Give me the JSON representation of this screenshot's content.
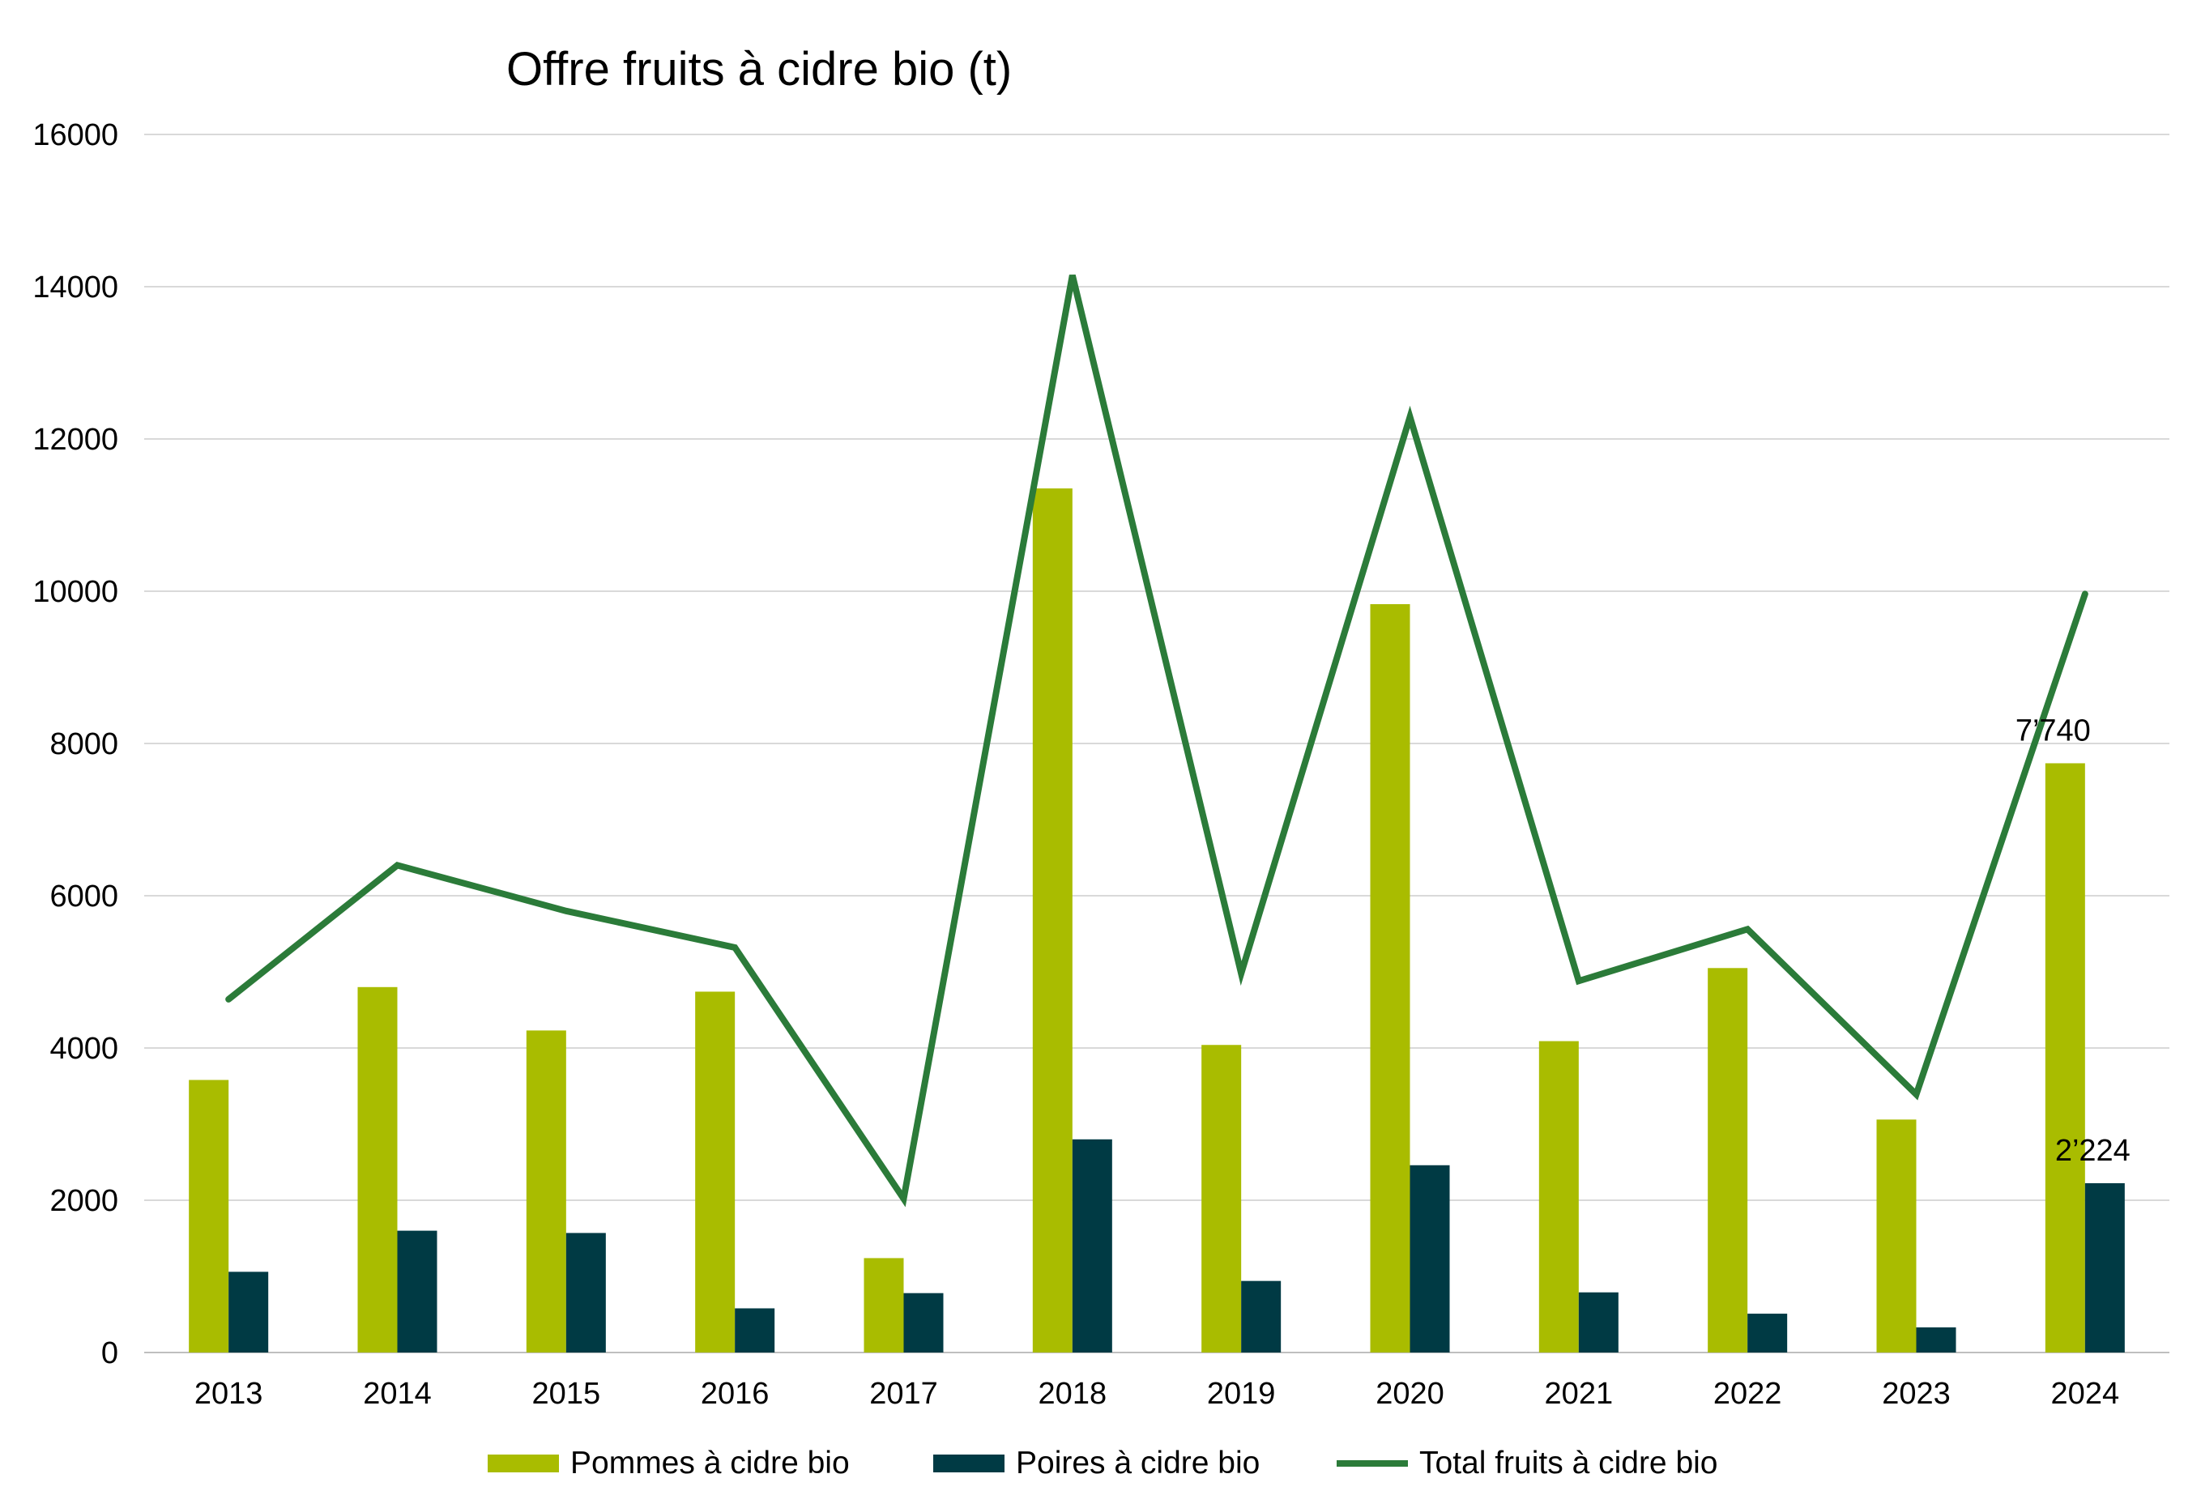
{
  "chart_data": {
    "type": "bar",
    "title": "Offre fruits à cidre bio (t)",
    "xlabel": "",
    "ylabel": "",
    "ylim": [
      0,
      16000
    ],
    "yticks": [
      0,
      2000,
      4000,
      6000,
      8000,
      10000,
      12000,
      14000,
      16000
    ],
    "grid": true,
    "legend_position": "bottom",
    "categories": [
      "2013",
      "2014",
      "2015",
      "2016",
      "2017",
      "2018",
      "2019",
      "2020",
      "2021",
      "2022",
      "2023",
      "2024"
    ],
    "series": [
      {
        "name": "Pommes à cidre bio",
        "kind": "bar",
        "color": "#A9BC00",
        "values": [
          3580,
          4800,
          4230,
          4740,
          1240,
          11350,
          4040,
          9830,
          4090,
          5050,
          3060,
          7740
        ]
      },
      {
        "name": "Poires à cidre bio",
        "kind": "bar",
        "color": "#003A44",
        "values": [
          1060,
          1600,
          1570,
          580,
          780,
          2800,
          940,
          2460,
          790,
          510,
          330,
          2224
        ]
      },
      {
        "name": "Total fruits à cidre bio",
        "kind": "line",
        "color": "#2B7B39",
        "values": [
          4640,
          6400,
          5800,
          5320,
          2020,
          14150,
          4980,
          12290,
          4880,
          5560,
          3390,
          9964
        ]
      }
    ],
    "data_labels": [
      {
        "series": "Pommes à cidre bio",
        "category": "2024",
        "text": "7’740"
      },
      {
        "series": "Poires à cidre bio",
        "category": "2024",
        "text": "2’224"
      }
    ]
  }
}
